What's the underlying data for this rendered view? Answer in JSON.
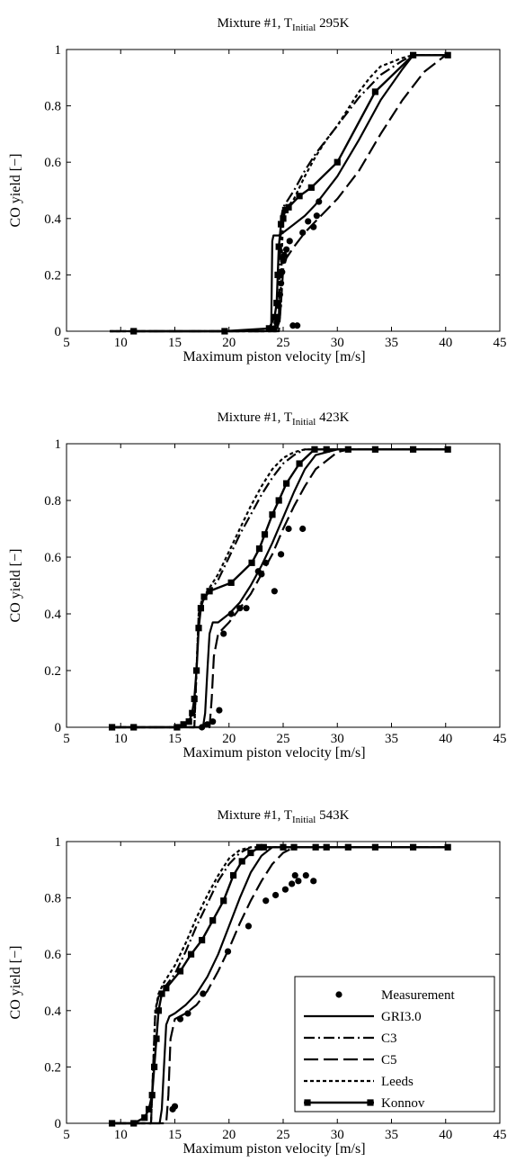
{
  "chart_data": [
    {
      "type": "line",
      "title": {
        "prefix": "Mixture #1, T",
        "sub": "Initial",
        "suffix": " 295K"
      },
      "xlabel": "Maximum piston velocity [m/s]",
      "ylabel": "CO yield [−]",
      "xlim": [
        5,
        45
      ],
      "ylim": [
        0,
        1
      ],
      "xticks": [
        "5",
        "10",
        "15",
        "20",
        "25",
        "30",
        "35",
        "40",
        "45"
      ],
      "yticks": [
        "0",
        "0.2",
        "0.4",
        "0.6",
        "0.8",
        "1"
      ],
      "series": [
        {
          "name": "Measurement",
          "x": [
            24.2,
            24.4,
            24.5,
            24.6,
            24.7,
            24.8,
            24.9,
            25.0,
            25.1,
            25.3,
            25.6,
            25.9,
            26.3,
            26.8,
            27.3,
            27.8,
            28.1,
            28.3
          ],
          "y": [
            0.01,
            0.03,
            0.05,
            0.09,
            0.13,
            0.17,
            0.21,
            0.25,
            0.27,
            0.29,
            0.32,
            0.02,
            0.02,
            0.35,
            0.39,
            0.37,
            0.41,
            0.46
          ]
        },
        {
          "name": "GRI3.0",
          "x": [
            9,
            23.5,
            23.9,
            24.0,
            24.1,
            24.3,
            24.6,
            25,
            26,
            27,
            28,
            30,
            32,
            34,
            36,
            37,
            40
          ],
          "y": [
            0,
            0,
            0.01,
            0.32,
            0.34,
            0.34,
            0.34,
            0.35,
            0.38,
            0.41,
            0.45,
            0.55,
            0.68,
            0.82,
            0.93,
            0.98,
            0.98
          ]
        },
        {
          "name": "C3",
          "x": [
            9,
            24.3,
            24.6,
            24.8,
            25,
            26,
            27,
            28,
            29,
            30,
            31,
            32,
            34,
            36,
            37,
            40
          ],
          "y": [
            0,
            0,
            0.05,
            0.4,
            0.44,
            0.5,
            0.57,
            0.63,
            0.68,
            0.73,
            0.78,
            0.83,
            0.91,
            0.96,
            0.98,
            0.98
          ]
        },
        {
          "name": "C5",
          "x": [
            9,
            24.6,
            24.8,
            25.0,
            25.3,
            26,
            27,
            28,
            30,
            32,
            34,
            36,
            38,
            40
          ],
          "y": [
            0,
            0,
            0.1,
            0.22,
            0.26,
            0.3,
            0.35,
            0.39,
            0.47,
            0.57,
            0.7,
            0.82,
            0.92,
            0.98
          ]
        },
        {
          "name": "Leeds",
          "x": [
            9,
            24.4,
            24.7,
            25,
            26,
            27,
            28,
            29,
            30,
            31,
            32,
            33,
            34,
            36,
            37,
            40
          ],
          "y": [
            0,
            0,
            0.05,
            0.42,
            0.47,
            0.55,
            0.62,
            0.68,
            0.73,
            0.79,
            0.85,
            0.9,
            0.94,
            0.97,
            0.98,
            0.98
          ]
        },
        {
          "name": "Konnov",
          "x": [
            11.2,
            19.6,
            23.7,
            24.2,
            24.4,
            24.5,
            24.6,
            24.8,
            25,
            25.2,
            25.5,
            26.5,
            27.6,
            30,
            33.5,
            37,
            40.2
          ],
          "y": [
            0,
            0,
            0.01,
            0.05,
            0.1,
            0.2,
            0.3,
            0.38,
            0.4,
            0.43,
            0.44,
            0.48,
            0.51,
            0.6,
            0.85,
            0.98,
            0.98
          ]
        }
      ]
    },
    {
      "type": "line",
      "title": {
        "prefix": "Mixture #1, T",
        "sub": "Initial",
        "suffix": " 423K"
      },
      "xlabel": "Maximum piston velocity [m/s]",
      "ylabel": "CO yield [−]",
      "xlim": [
        5,
        45
      ],
      "ylim": [
        0,
        1
      ],
      "xticks": [
        "5",
        "10",
        "15",
        "20",
        "25",
        "30",
        "35",
        "40",
        "45"
      ],
      "yticks": [
        "0",
        "0.2",
        "0.4",
        "0.6",
        "0.8",
        "1"
      ],
      "series": [
        {
          "name": "Measurement",
          "x": [
            17.5,
            18.0,
            18.5,
            19.1,
            19.5,
            20.2,
            21.0,
            21.6,
            22.7,
            23.0,
            23.4,
            24.2,
            24.8,
            25.5,
            26.8
          ],
          "y": [
            0.0,
            0.01,
            0.02,
            0.06,
            0.33,
            0.4,
            0.42,
            0.42,
            0.55,
            0.54,
            0.58,
            0.48,
            0.61,
            0.7,
            0.7
          ]
        },
        {
          "name": "GRI3.0",
          "x": [
            9,
            17.6,
            17.8,
            18.0,
            18.2,
            18.5,
            19,
            20,
            21,
            22,
            23,
            24,
            25,
            26,
            27,
            28,
            30,
            40
          ],
          "y": [
            0,
            0,
            0.05,
            0.2,
            0.33,
            0.37,
            0.37,
            0.4,
            0.44,
            0.5,
            0.57,
            0.65,
            0.74,
            0.83,
            0.91,
            0.96,
            0.98,
            0.98
          ]
        },
        {
          "name": "C3",
          "x": [
            9,
            16.8,
            17.0,
            17.2,
            17.5,
            18,
            19,
            20,
            21,
            22,
            23,
            24,
            25,
            26,
            27,
            28,
            40
          ],
          "y": [
            0,
            0,
            0.2,
            0.4,
            0.44,
            0.47,
            0.52,
            0.6,
            0.68,
            0.75,
            0.82,
            0.88,
            0.93,
            0.96,
            0.98,
            0.98,
            0.98
          ]
        },
        {
          "name": "C5",
          "x": [
            9,
            18.2,
            18.4,
            18.6,
            19,
            20,
            21,
            22,
            23,
            24,
            25,
            26,
            27,
            28,
            30,
            31,
            40
          ],
          "y": [
            0,
            0,
            0.1,
            0.25,
            0.33,
            0.37,
            0.42,
            0.47,
            0.54,
            0.61,
            0.7,
            0.78,
            0.85,
            0.91,
            0.97,
            0.98,
            0.98
          ]
        },
        {
          "name": "Leeds",
          "x": [
            9,
            16.8,
            17.0,
            17.2,
            17.5,
            18,
            19,
            20,
            21,
            22,
            23,
            24,
            25,
            26,
            27,
            40
          ],
          "y": [
            0,
            0,
            0.2,
            0.4,
            0.45,
            0.48,
            0.54,
            0.62,
            0.7,
            0.78,
            0.85,
            0.91,
            0.95,
            0.97,
            0.98,
            0.98
          ]
        },
        {
          "name": "Konnov",
          "x": [
            9.2,
            11.2,
            15.2,
            15.8,
            16.3,
            16.6,
            16.8,
            17.0,
            17.2,
            17.4,
            17.7,
            18.2,
            20.2,
            22.1,
            22.8,
            23.3,
            24.0,
            24.6,
            25.3,
            26.5,
            27.9,
            29.0,
            31.0,
            33.5,
            37.0,
            40.2
          ],
          "y": [
            0,
            0,
            0,
            0.01,
            0.02,
            0.05,
            0.1,
            0.2,
            0.35,
            0.42,
            0.46,
            0.48,
            0.51,
            0.58,
            0.63,
            0.68,
            0.75,
            0.8,
            0.86,
            0.93,
            0.98,
            0.98,
            0.98,
            0.98,
            0.98,
            0.98
          ]
        }
      ]
    },
    {
      "type": "line",
      "title": {
        "prefix": "Mixture #1, T",
        "sub": "Initial",
        "suffix": " 543K"
      },
      "xlabel": "Maximum piston velocity [m/s]",
      "ylabel": "CO yield [−]",
      "xlim": [
        5,
        45
      ],
      "ylim": [
        0,
        1
      ],
      "xticks": [
        "5",
        "10",
        "15",
        "20",
        "25",
        "30",
        "35",
        "40",
        "45"
      ],
      "yticks": [
        "0",
        "0.2",
        "0.4",
        "0.6",
        "0.8",
        "1"
      ],
      "series": [
        {
          "name": "Measurement",
          "x": [
            14.8,
            15.0,
            15.5,
            16.2,
            17.6,
            19.9,
            21.8,
            23.4,
            24.3,
            25.2,
            25.8,
            26.1,
            26.4,
            27.1,
            27.8
          ],
          "y": [
            0.05,
            0.06,
            0.37,
            0.39,
            0.46,
            0.61,
            0.7,
            0.79,
            0.81,
            0.83,
            0.85,
            0.88,
            0.86,
            0.88,
            0.86
          ]
        },
        {
          "name": "GRI3.0",
          "x": [
            9,
            13.6,
            13.8,
            14.0,
            14.2,
            14.5,
            15,
            16,
            17,
            18,
            19,
            20,
            21,
            22,
            23,
            24,
            25,
            40
          ],
          "y": [
            0,
            0,
            0.05,
            0.2,
            0.35,
            0.38,
            0.39,
            0.42,
            0.46,
            0.52,
            0.6,
            0.7,
            0.8,
            0.89,
            0.95,
            0.98,
            0.98,
            0.98
          ]
        },
        {
          "name": "C3",
          "x": [
            9,
            12.8,
            13.0,
            13.2,
            13.5,
            14,
            15,
            16,
            17,
            18,
            19,
            20,
            21,
            22,
            23,
            40
          ],
          "y": [
            0,
            0,
            0.2,
            0.4,
            0.45,
            0.48,
            0.53,
            0.61,
            0.7,
            0.78,
            0.86,
            0.92,
            0.96,
            0.98,
            0.98,
            0.98
          ]
        },
        {
          "name": "C5",
          "x": [
            9,
            14.2,
            14.4,
            14.6,
            15,
            16,
            17,
            18,
            19,
            20,
            21,
            22,
            23,
            24,
            25,
            26,
            40
          ],
          "y": [
            0,
            0,
            0.1,
            0.3,
            0.37,
            0.39,
            0.42,
            0.47,
            0.54,
            0.62,
            0.71,
            0.79,
            0.86,
            0.92,
            0.96,
            0.98,
            0.98
          ]
        },
        {
          "name": "Leeds",
          "x": [
            9,
            12.8,
            13.0,
            13.2,
            13.5,
            14,
            15,
            16,
            17,
            18,
            19,
            20,
            21,
            22,
            40
          ],
          "y": [
            0,
            0,
            0.2,
            0.4,
            0.46,
            0.5,
            0.56,
            0.64,
            0.73,
            0.81,
            0.88,
            0.94,
            0.97,
            0.98,
            0.98
          ]
        },
        {
          "name": "Konnov",
          "x": [
            9.2,
            11.2,
            12.2,
            12.6,
            12.9,
            13.1,
            13.3,
            13.5,
            13.8,
            14.2,
            15.5,
            16.5,
            17.5,
            18.5,
            19.5,
            20.4,
            21.2,
            22.0,
            22.8,
            23.2,
            25.0,
            26.0,
            28.0,
            29.0,
            31.0,
            33.5,
            37.0,
            40.2
          ],
          "y": [
            0,
            0,
            0.02,
            0.05,
            0.1,
            0.2,
            0.3,
            0.4,
            0.46,
            0.48,
            0.54,
            0.6,
            0.65,
            0.72,
            0.79,
            0.88,
            0.93,
            0.96,
            0.98,
            0.98,
            0.98,
            0.98,
            0.98,
            0.98,
            0.98,
            0.98,
            0.98,
            0.98
          ]
        }
      ]
    }
  ],
  "legend": {
    "items": [
      "Measurement",
      "GRI3.0",
      "C3",
      "C5",
      "Leeds",
      "Konnov"
    ]
  }
}
